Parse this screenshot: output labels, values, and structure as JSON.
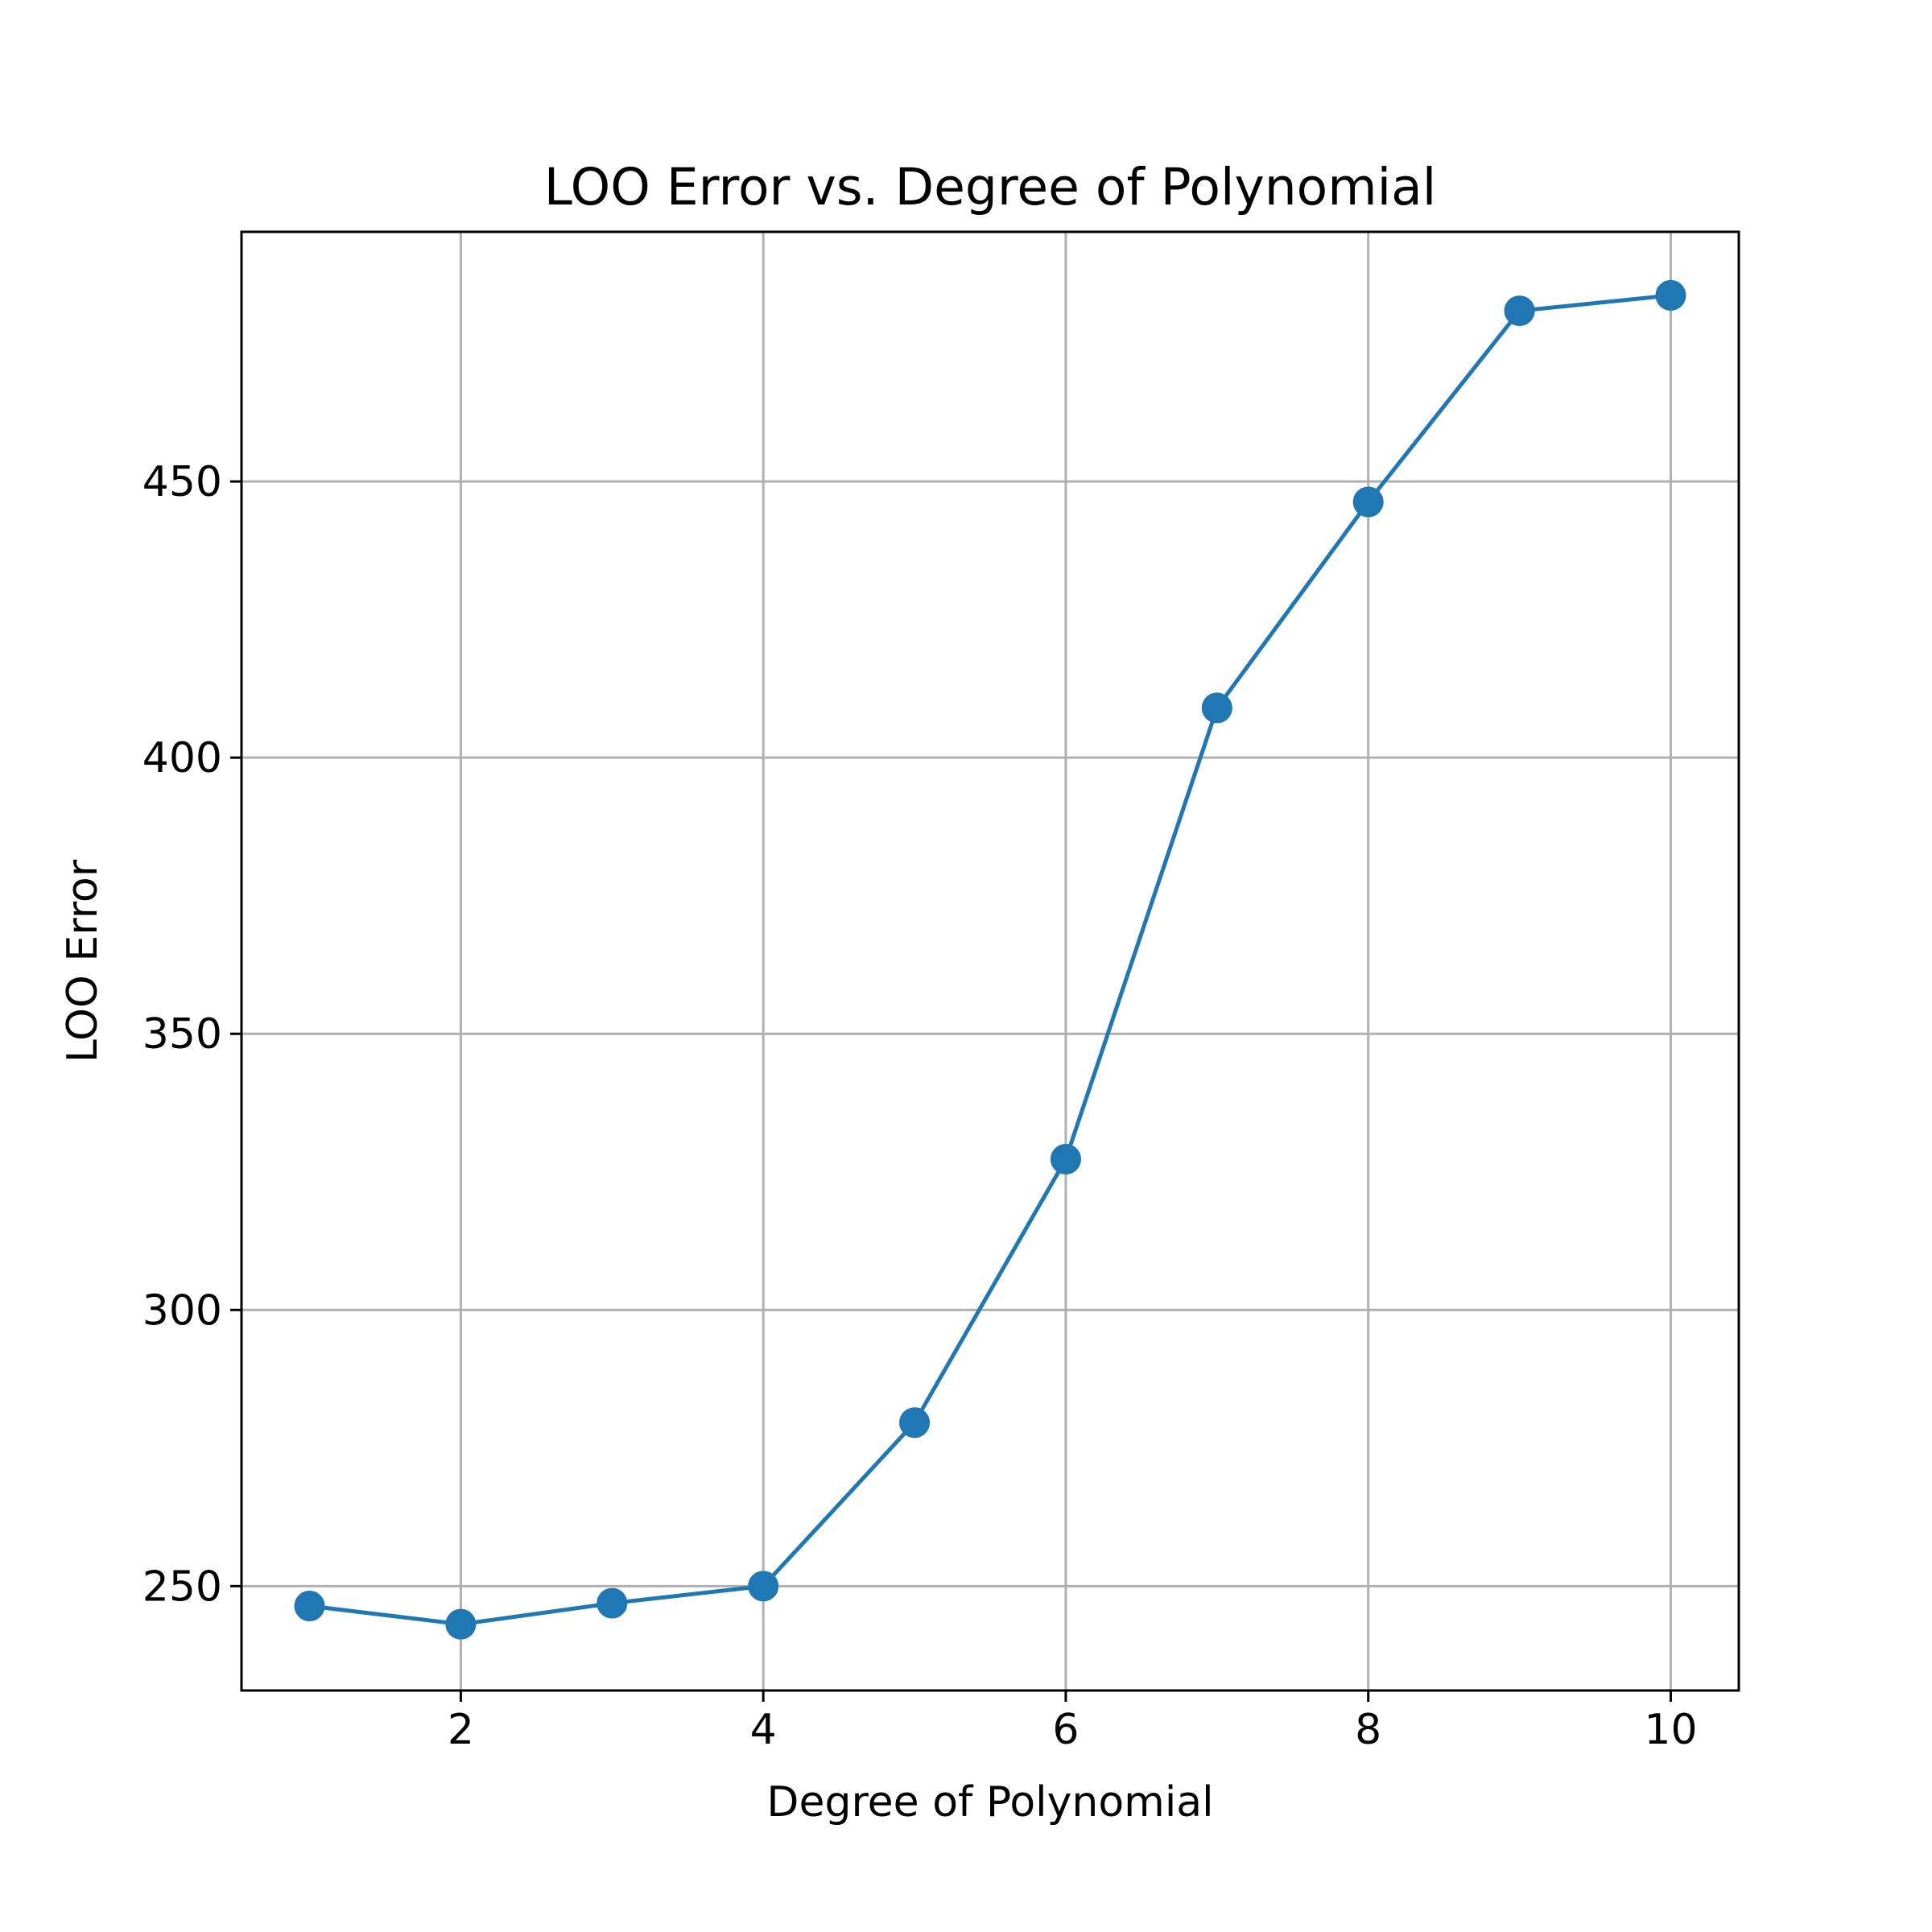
{
  "chart_data": {
    "type": "line",
    "title": "LOO Error vs. Degree of Polynomial",
    "xlabel": "Degree of Polynomial",
    "ylabel": "LOO Error",
    "x": [
      1,
      2,
      3,
      4,
      5,
      6,
      7,
      8,
      9,
      10
    ],
    "series": [
      {
        "values": [
          246.4,
          243.1,
          246.9,
          250.0,
          279.6,
          327.3,
          409.0,
          446.3,
          480.9,
          483.7
        ]
      }
    ],
    "xlim": [
      0.55,
      10.45
    ],
    "ylim": [
      231.1,
      495.2
    ],
    "xticks": [
      2,
      4,
      6,
      8,
      10
    ],
    "yticks": [
      250,
      300,
      350,
      400,
      450
    ],
    "grid": true,
    "marker": "circle",
    "color": "#1f77b4"
  }
}
